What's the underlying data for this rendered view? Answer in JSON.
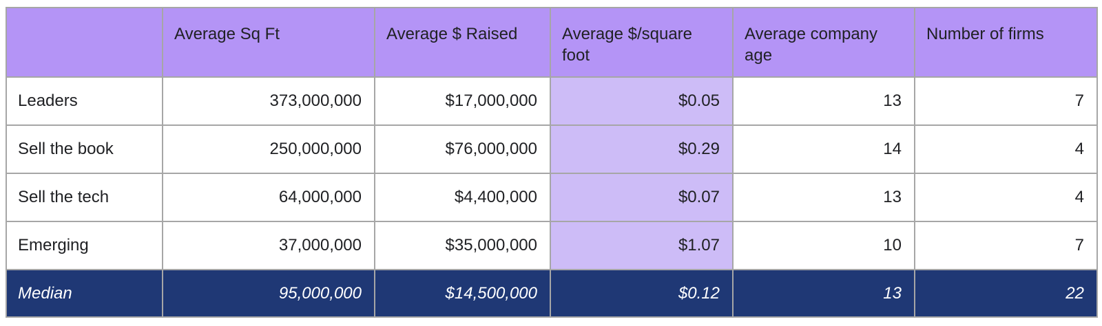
{
  "chart_data": {
    "type": "table",
    "columns": [
      "",
      "Average Sq Ft",
      "Average $ Raised",
      "Average $/square foot",
      "Average company age",
      "Number of firms"
    ],
    "rows": [
      [
        "Leaders",
        "373,000,000",
        "$17,000,000",
        "$0.05",
        "13",
        "7"
      ],
      [
        "Sell the book",
        "250,000,000",
        "$76,000,000",
        "$0.29",
        "14",
        "4"
      ],
      [
        "Sell the tech",
        "64,000,000",
        "$4,400,000",
        "$0.07",
        "13",
        "4"
      ],
      [
        "Emerging",
        "37,000,000",
        "$35,000,000",
        "$1.07",
        "10",
        "7"
      ]
    ],
    "footer_row": [
      "Median",
      "95,000,000",
      "$14,500,000",
      "$0.12",
      "13",
      "22"
    ],
    "highlighted_column": "Average $/square foot",
    "legend_position": "none",
    "grid": true
  },
  "colors": {
    "header_bg": "#b494f6",
    "highlight_column_bg": "#cdbcf7",
    "footer_bg": "#1f3875",
    "footer_text": "#ffffff",
    "border": "#a6a6a6",
    "body_text": "#202124",
    "page_bg": "#ffffff"
  }
}
